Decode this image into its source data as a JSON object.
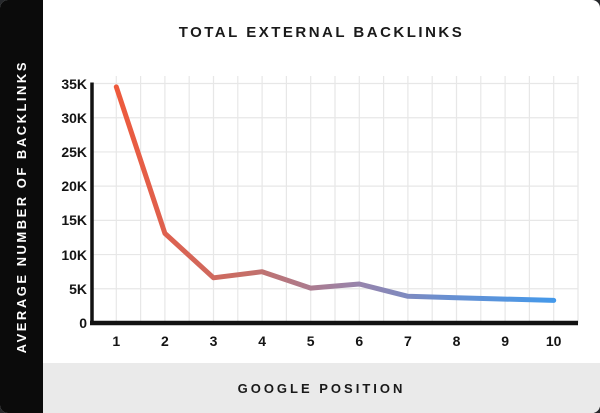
{
  "header": {
    "title": "TOTAL EXTERNAL BACKLINKS"
  },
  "sidebar": {
    "ylabel": "AVERAGE NUMBER OF BACKLINKS"
  },
  "footer": {
    "xlabel": "GOOGLE POSITION"
  },
  "colors": {
    "sidebar_bg": "#0b0b0b",
    "card_bg": "#ffffff",
    "footer_bg": "#eaeaea",
    "axis": "#121212",
    "grid": "#e7e7e7",
    "text": "#141414"
  },
  "chart_data": {
    "type": "line",
    "title": "TOTAL EXTERNAL BACKLINKS",
    "xlabel": "GOOGLE POSITION",
    "ylabel": "AVERAGE NUMBER OF BACKLINKS",
    "categories": [
      "1",
      "2",
      "3",
      "4",
      "5",
      "6",
      "7",
      "8",
      "9",
      "10"
    ],
    "values": [
      34500,
      13100,
      6600,
      7500,
      5100,
      5700,
      3900,
      3700,
      3500,
      3300
    ],
    "y_ticks": [
      "35K",
      "30K",
      "25K",
      "20K",
      "15K",
      "10K",
      "5K",
      "0"
    ],
    "ylim": [
      0,
      35000
    ],
    "grid": true,
    "legend": false,
    "line_gradient": [
      {
        "offset": 0,
        "color": "#ee5a3c"
      },
      {
        "offset": 0.12,
        "color": "#dd6150"
      },
      {
        "offset": 0.3,
        "color": "#c56f68"
      },
      {
        "offset": 0.55,
        "color": "#9884ab"
      },
      {
        "offset": 0.75,
        "color": "#6a8fd0"
      },
      {
        "offset": 1,
        "color": "#4499ea"
      }
    ]
  }
}
